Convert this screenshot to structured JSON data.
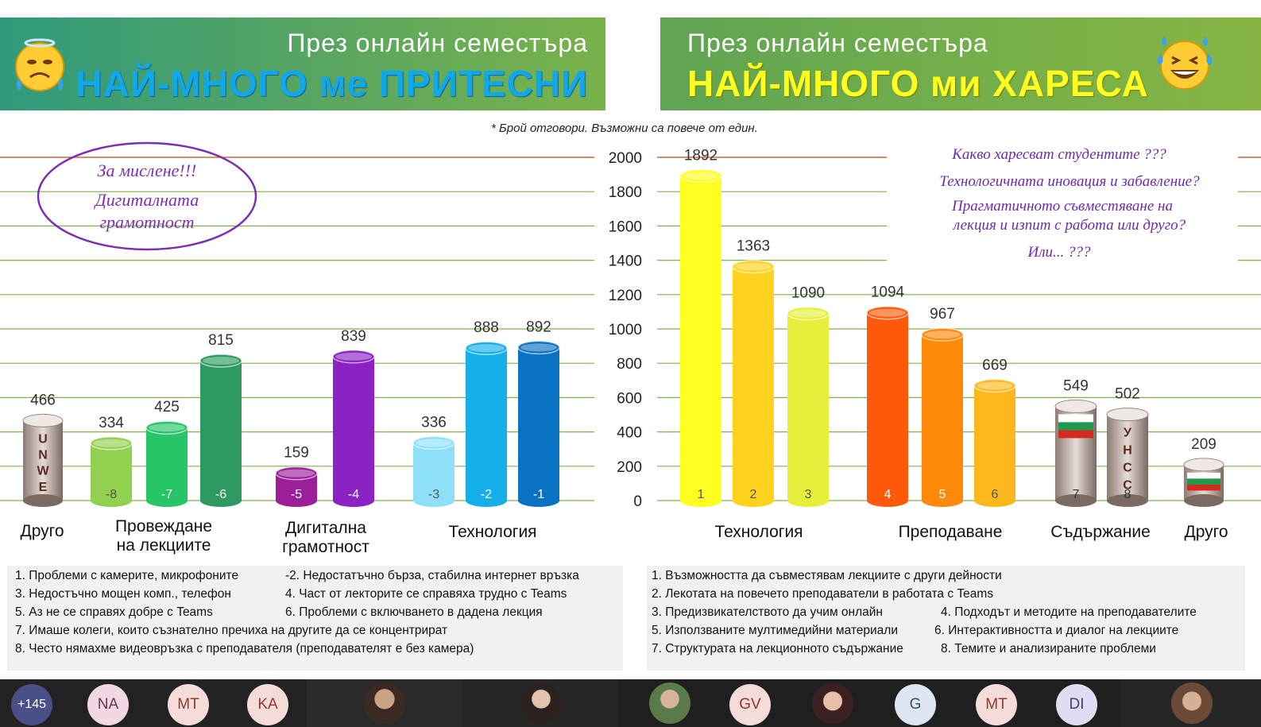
{
  "header_left": {
    "line1": "През онлайн семестъра",
    "line2": "НАЙ-МНОГО ме ПРИТЕСНИ"
  },
  "header_right": {
    "line1": "През онлайн семестъра",
    "line2": "НАЙ-МНОГО ми ХАРЕСА"
  },
  "note": "*  Брой отговори. Възможни са повече  от един.",
  "ellipse_text": [
    "За мислене!!!",
    "Дигиталната",
    "грамотност"
  ],
  "questions": [
    "Какво харесват студентите ???",
    "Технологичната иновация и забавление?",
    "Прагматичното съвместяване на",
    "лекция и изпит  с работа или друго?",
    "Или... ???"
  ],
  "colors": {
    "left_banner": "#3a9c74",
    "right_banner": "#78b048",
    "left_title": "#10a8e8",
    "right_title": "#ffff22"
  },
  "chart_data": [
    {
      "type": "bar",
      "title": "НАЙ-МНОГО ме ПРИТЕСНИ",
      "ylim": [
        0,
        2000
      ],
      "groups": [
        "Друго",
        "Провеждане\nна лекциите",
        "Дигитална\nграмотност",
        "Технология"
      ],
      "bars": [
        {
          "group": "Друго",
          "value": 466,
          "label": "",
          "image": "UNWE"
        },
        {
          "group": "Провеждане\nна лекциите",
          "value": 334,
          "label": "-8",
          "color": "#92d050"
        },
        {
          "group": "Провеждане\nна лекциите",
          "value": 425,
          "label": "-7",
          "color": "#27c468"
        },
        {
          "group": "Провеждане\nна лекциите",
          "value": 815,
          "label": "-6",
          "color": "#2e9a62"
        },
        {
          "group": "Дигитална\nграмотност",
          "value": 159,
          "label": "-5",
          "color": "#9a1f99"
        },
        {
          "group": "Дигитална\nграмотност",
          "value": 839,
          "label": "-4",
          "color": "#8b22c2"
        },
        {
          "group": "Технология",
          "value": 336,
          "label": "-3",
          "color": "#8ee0f8"
        },
        {
          "group": "Технология",
          "value": 888,
          "label": "-2",
          "color": "#14aee8"
        },
        {
          "group": "Технология",
          "value": 892,
          "label": "-1",
          "color": "#0a72c2"
        }
      ]
    },
    {
      "type": "bar",
      "title": "НАЙ-МНОГО ми ХАРЕСА",
      "ylim": [
        0,
        2000
      ],
      "yticks": [
        0,
        200,
        400,
        600,
        800,
        1000,
        1200,
        1400,
        1600,
        1800,
        2000
      ],
      "groups": [
        "Технология",
        "Преподаване",
        "Съдържание",
        "Друго"
      ],
      "bars": [
        {
          "group": "Технология",
          "value": 1892,
          "label": "1",
          "color": "#ffff20"
        },
        {
          "group": "Технология",
          "value": 1363,
          "label": "2",
          "color": "#ffd21e"
        },
        {
          "group": "Технология",
          "value": 1090,
          "label": "3",
          "color": "#e8ee3c"
        },
        {
          "group": "Преподаване",
          "value": 1094,
          "label": "4",
          "color": "#ff5a0a"
        },
        {
          "group": "Преподаване",
          "value": 967,
          "label": "5",
          "color": "#ff8a0a"
        },
        {
          "group": "Преподаване",
          "value": 669,
          "label": "6",
          "color": "#ffb81c"
        },
        {
          "group": "Съдържание",
          "value": 549,
          "label": "7",
          "image": "flag"
        },
        {
          "group": "Съдържание",
          "value": 502,
          "label": "8",
          "image": "УНСС"
        },
        {
          "group": "Друго",
          "value": 209,
          "label": "",
          "image": "flag"
        }
      ]
    }
  ],
  "legend_left": [
    "1. Проблеми с камерите, микрофоните",
    "-2. Недостатъчно бърза, стабилна интернет връзка",
    "3. Недостъчно мощен комп., телефон",
    "4. Част от лекторите се справяха трудно с Teams",
    "5. Аз не се справях добре с Teams",
    "6. Проблеми с включването в дадена лекция",
    "7. Имаше колеги, които съзнателно пречиха на другите да се концентрират",
    "8. Често нямахме видеовръзка с преподавателя (преподавателят е без камера)"
  ],
  "legend_right": [
    "1. Възможността да съвместявам лекциите с други дейности",
    "2. Лекотата на повечето преподаватели в работата с Teams",
    "3. Предизвикателството да учим онлайн",
    "4. Подходът и методите на преподавателите",
    "5. Използваните мултимедийни материали",
    "6. Интерактивността и диалог на лекциите",
    "7. Структурата на лекционното съдържание",
    "8. Темите и анализираните проблеми"
  ],
  "participants": {
    "more_count": "+145",
    "avatars": [
      "NA",
      "MT",
      "KA",
      "GV",
      "G",
      "MT",
      "DI"
    ]
  }
}
